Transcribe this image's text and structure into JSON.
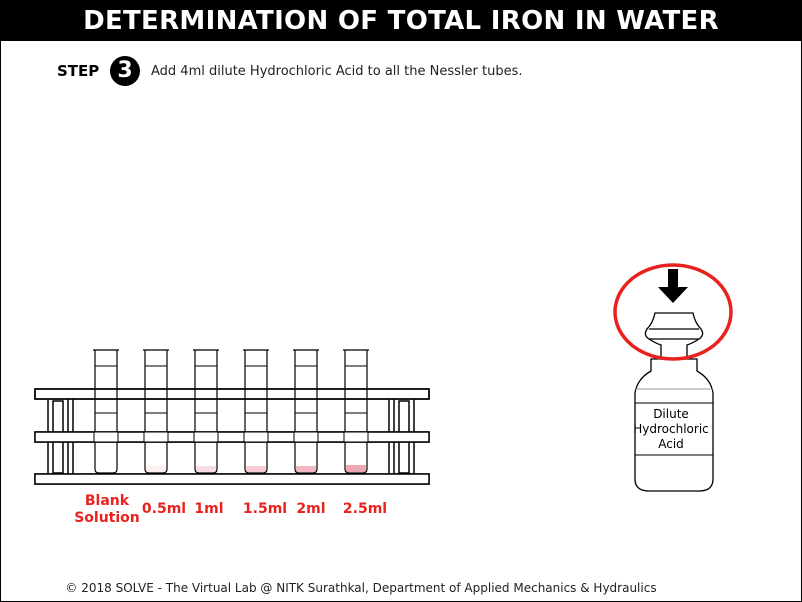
{
  "title": "DETERMINATION OF TOTAL IRON IN WATER",
  "step": {
    "label": "STEP",
    "number": "3",
    "instruction": "Add 4ml dilute Hydrochloric Acid to all the Nessler tubes."
  },
  "tubes": [
    {
      "label_line1": "Blank",
      "label_line2": "Solution",
      "liquid_color": "#ffffff"
    },
    {
      "label_line1": "0.5ml",
      "label_line2": "",
      "liquid_color": "#fdeef0"
    },
    {
      "label_line1": "1ml",
      "label_line2": "",
      "liquid_color": "#f9dde2"
    },
    {
      "label_line1": "1.5ml",
      "label_line2": "",
      "liquid_color": "#f6ccd4"
    },
    {
      "label_line1": "2ml",
      "label_line2": "",
      "liquid_color": "#f2b9c4"
    },
    {
      "label_line1": "2.5ml",
      "label_line2": "",
      "liquid_color": "#eea6b4"
    }
  ],
  "bottle": {
    "line1": "Dilute",
    "line2": "Hydrochloric",
    "line3": "Acid",
    "icon": "down-arrow-icon",
    "highlight_color": "#e8231f"
  },
  "footer": "© 2018 SOLVE - The Virtual Lab @ NITK Surathkal, Department of Applied Mechanics & Hydraulics"
}
